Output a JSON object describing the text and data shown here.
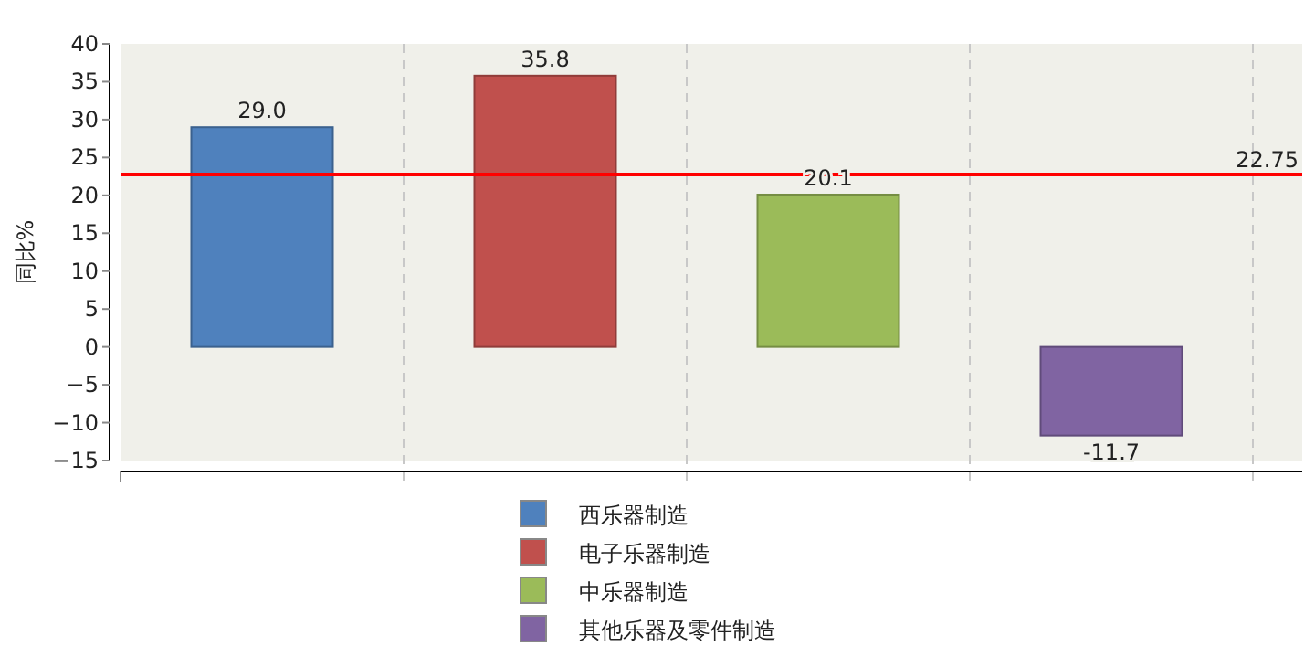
{
  "chart_data": {
    "type": "bar",
    "ylabel": "同比%",
    "categories": [
      null,
      null,
      null,
      null
    ],
    "series": [
      {
        "name": "西乐器制造",
        "color": "#4f81bd",
        "values": [
          29.0,
          null,
          null,
          null
        ],
        "value_labels": [
          "29.0",
          null,
          null,
          null
        ]
      },
      {
        "name": "电子乐器制造",
        "color": "#c0504d",
        "values": [
          null,
          35.8,
          null,
          null
        ],
        "value_labels": [
          null,
          "35.8",
          null,
          null
        ]
      },
      {
        "name": "中乐器制造",
        "color": "#9bbb59",
        "values": [
          null,
          null,
          20.1,
          null
        ],
        "value_labels": [
          null,
          null,
          "20.1",
          null
        ]
      },
      {
        "name": "其他乐器及零件制造",
        "color": "#8064a2",
        "values": [
          null,
          null,
          null,
          -11.7
        ],
        "value_labels": [
          null,
          null,
          null,
          "-11.7"
        ]
      }
    ],
    "ylim": [
      -15,
      40
    ],
    "yticks": [
      -15,
      -10,
      -5,
      0,
      5,
      10,
      15,
      20,
      25,
      30,
      35,
      40
    ],
    "ref_lines": [
      {
        "axis": "y",
        "value": 22.75,
        "label": "22.75",
        "color": "#ff0000"
      }
    ],
    "grid": "x",
    "legend": "bottom"
  }
}
